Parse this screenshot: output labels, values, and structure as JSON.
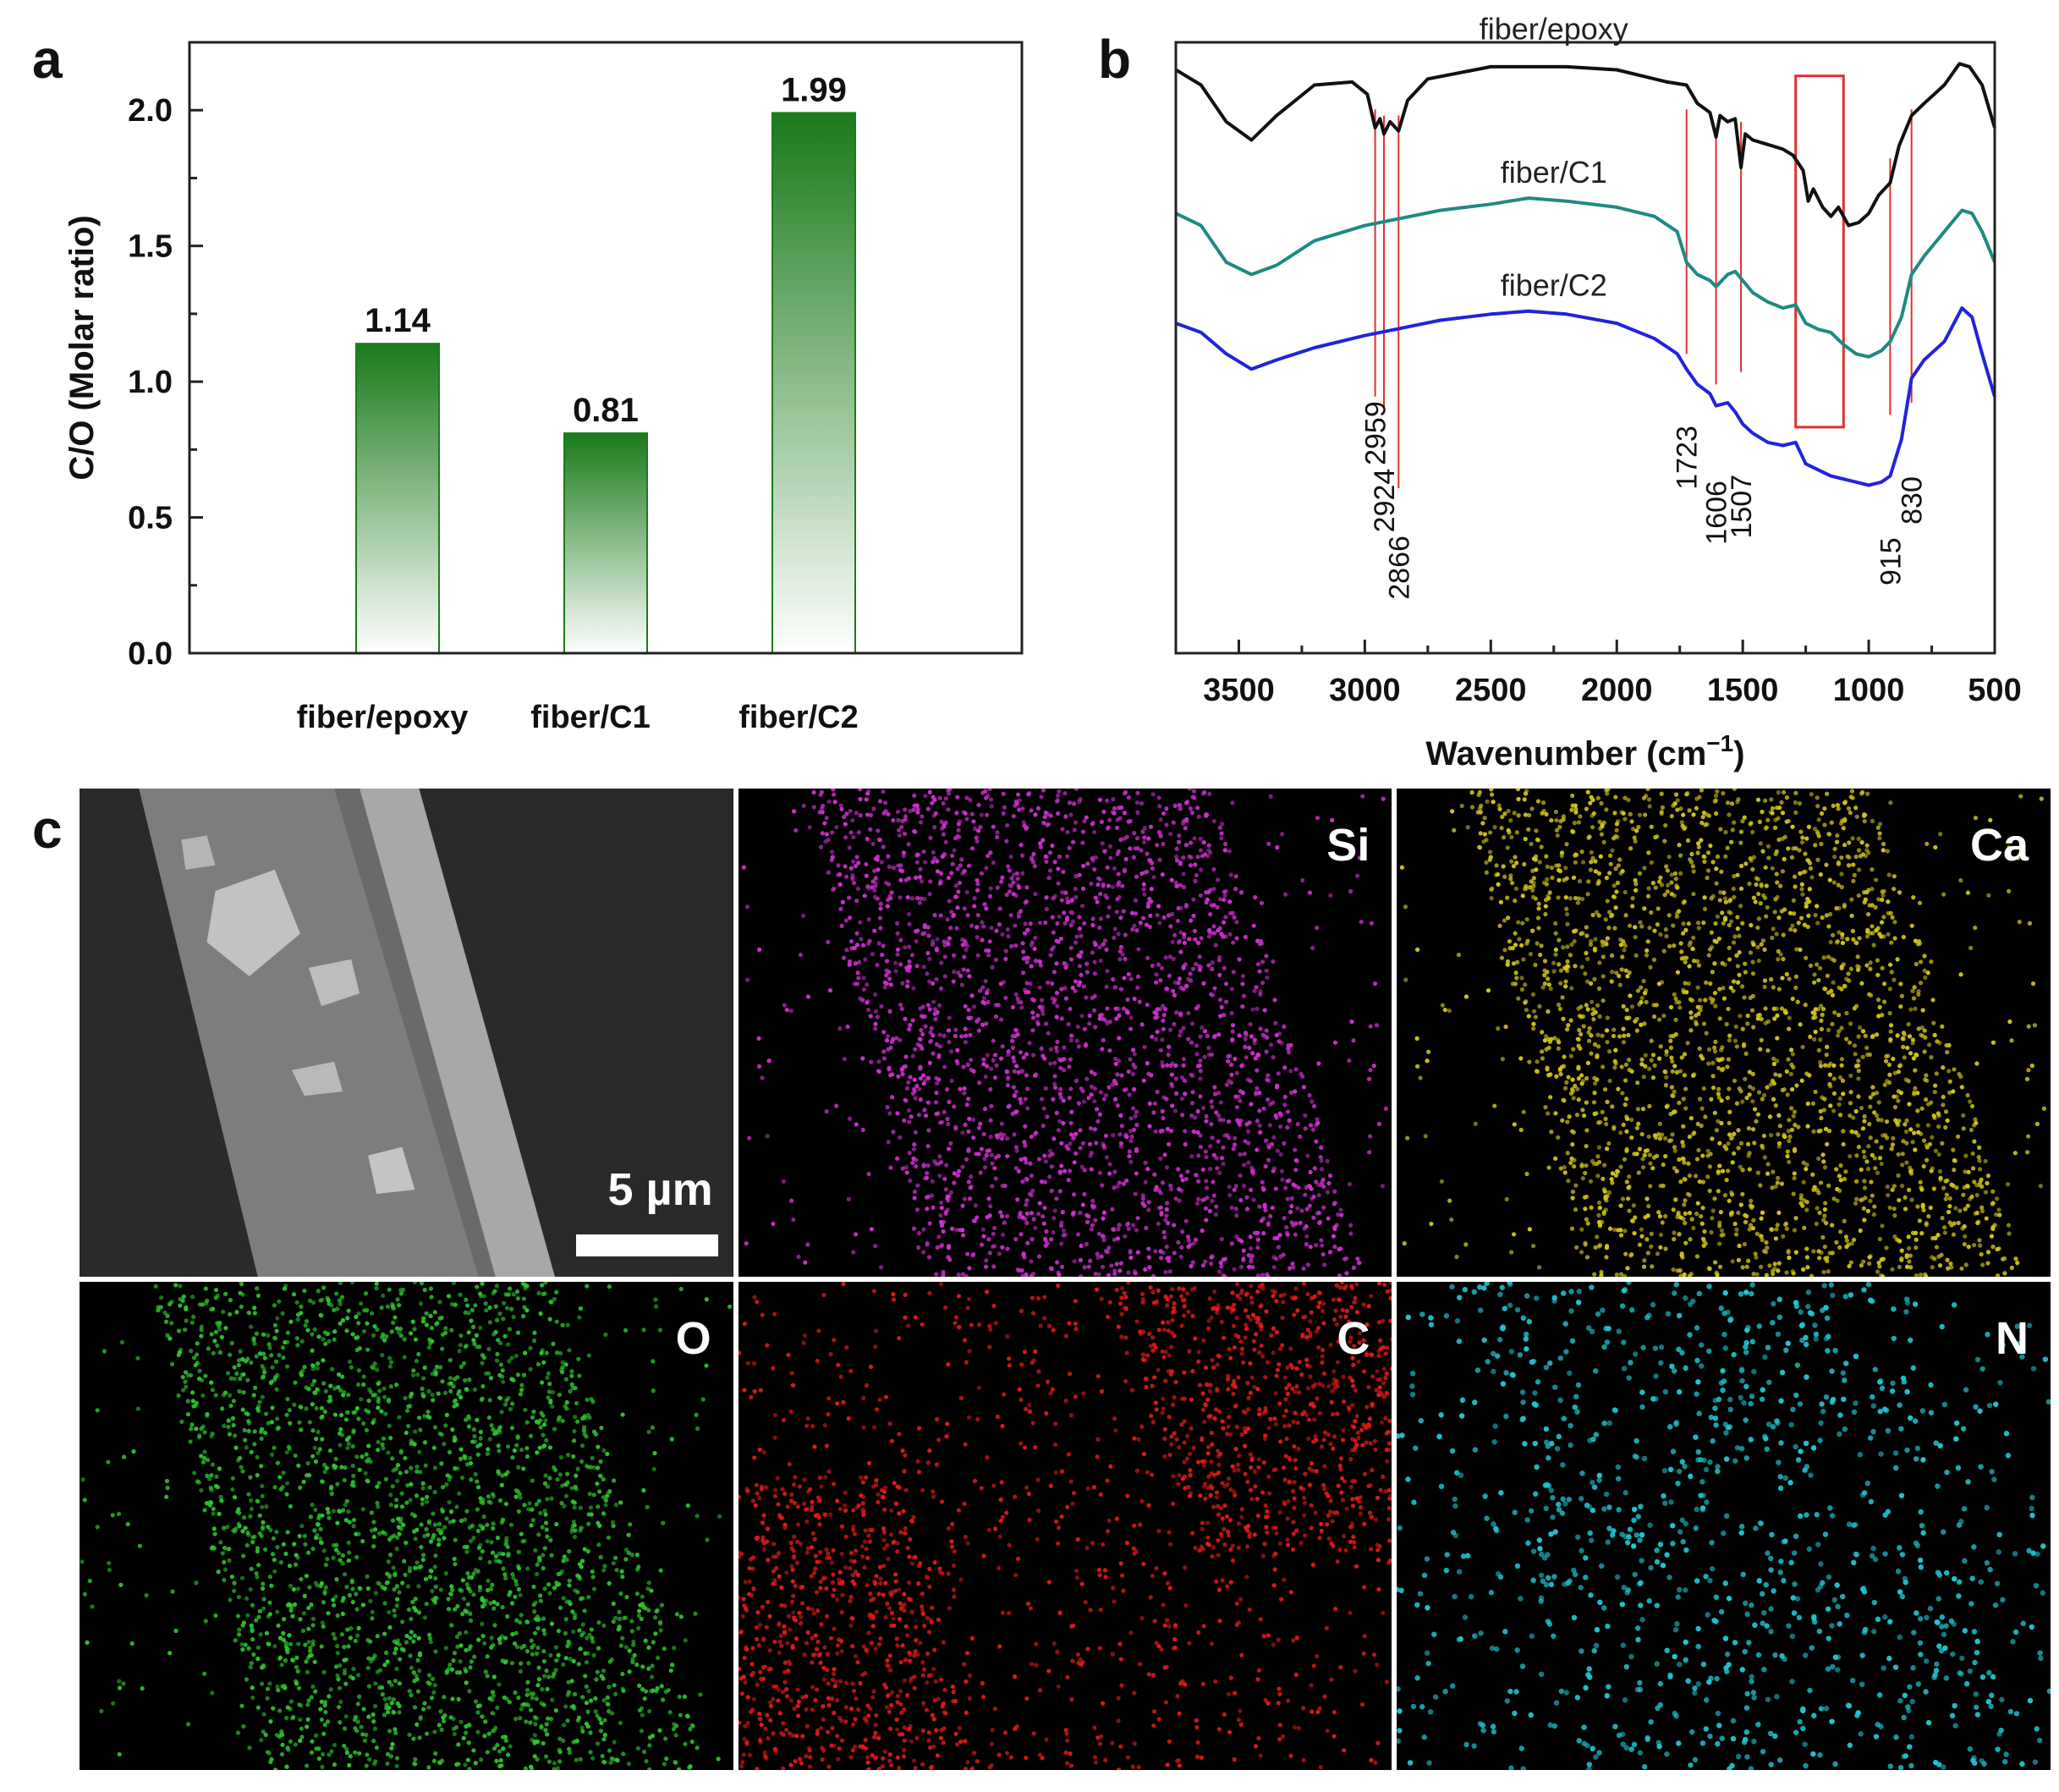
{
  "panels": {
    "a": "a",
    "b": "b",
    "c": "c"
  },
  "chart_data": [
    {
      "type": "bar",
      "panel": "a",
      "categories": [
        "fiber/epoxy",
        "fiber/C1",
        "fiber/C2"
      ],
      "values": [
        1.14,
        0.81,
        1.99
      ],
      "data_labels": [
        "1.14",
        "0.81",
        "1.99"
      ],
      "ylabel": "C/O (Molar ratio)",
      "xlabel": "",
      "ylim": [
        0,
        2.25
      ],
      "yticks": [
        0.0,
        0.5,
        1.0,
        1.5,
        2.0
      ],
      "ytick_labels": [
        "0.0",
        "0.5",
        "1.0",
        "1.5",
        "2.0"
      ],
      "bar_color_top": "#1a7a1a",
      "bar_color_bottom": "#ffffff",
      "grid": false
    },
    {
      "type": "line",
      "panel": "b",
      "xlabel": "Wavenumber (cm",
      "xlabel_sup": "−1",
      "xlabel_close": ")",
      "xlim": [
        3750,
        500
      ],
      "xticks": [
        3500,
        3000,
        2500,
        2000,
        1500,
        1000,
        500
      ],
      "xtick_labels": [
        "3500",
        "3000",
        "2500",
        "2000",
        "1500",
        "1000",
        "500"
      ],
      "ylabel": "",
      "grid": false,
      "series": [
        {
          "name": "fiber/epoxy",
          "color": "#111111",
          "points": [
            [
              3750,
              0.955
            ],
            [
              3650,
              0.93
            ],
            [
              3550,
              0.87
            ],
            [
              3450,
              0.84
            ],
            [
              3350,
              0.88
            ],
            [
              3200,
              0.93
            ],
            [
              3050,
              0.935
            ],
            [
              2990,
              0.915
            ],
            [
              2959,
              0.86
            ],
            [
              2940,
              0.875
            ],
            [
              2924,
              0.85
            ],
            [
              2900,
              0.87
            ],
            [
              2866,
              0.855
            ],
            [
              2830,
              0.905
            ],
            [
              2750,
              0.94
            ],
            [
              2500,
              0.96
            ],
            [
              2200,
              0.96
            ],
            [
              2000,
              0.955
            ],
            [
              1800,
              0.935
            ],
            [
              1723,
              0.93
            ],
            [
              1680,
              0.9
            ],
            [
              1630,
              0.885
            ],
            [
              1606,
              0.845
            ],
            [
              1590,
              0.88
            ],
            [
              1560,
              0.87
            ],
            [
              1530,
              0.875
            ],
            [
              1507,
              0.795
            ],
            [
              1490,
              0.85
            ],
            [
              1460,
              0.84
            ],
            [
              1420,
              0.835
            ],
            [
              1380,
              0.83
            ],
            [
              1340,
              0.825
            ],
            [
              1300,
              0.815
            ],
            [
              1260,
              0.79
            ],
            [
              1240,
              0.74
            ],
            [
              1220,
              0.76
            ],
            [
              1183,
              0.73
            ],
            [
              1150,
              0.715
            ],
            [
              1120,
              0.73
            ],
            [
              1080,
              0.7
            ],
            [
              1040,
              0.705
            ],
            [
              1000,
              0.72
            ],
            [
              960,
              0.75
            ],
            [
              915,
              0.77
            ],
            [
              880,
              0.83
            ],
            [
              830,
              0.88
            ],
            [
              780,
              0.9
            ],
            [
              700,
              0.93
            ],
            [
              640,
              0.965
            ],
            [
              600,
              0.96
            ],
            [
              550,
              0.93
            ],
            [
              500,
              0.86
            ]
          ]
        },
        {
          "name": "fiber/C1",
          "color": "#1e8a82",
          "points": [
            [
              3750,
              0.72
            ],
            [
              3650,
              0.7
            ],
            [
              3550,
              0.64
            ],
            [
              3450,
              0.62
            ],
            [
              3350,
              0.635
            ],
            [
              3200,
              0.675
            ],
            [
              3000,
              0.7
            ],
            [
              2700,
              0.725
            ],
            [
              2500,
              0.735
            ],
            [
              2350,
              0.745
            ],
            [
              2200,
              0.74
            ],
            [
              2000,
              0.73
            ],
            [
              1850,
              0.715
            ],
            [
              1760,
              0.69
            ],
            [
              1723,
              0.64
            ],
            [
              1680,
              0.62
            ],
            [
              1630,
              0.61
            ],
            [
              1606,
              0.6
            ],
            [
              1560,
              0.62
            ],
            [
              1530,
              0.625
            ],
            [
              1500,
              0.61
            ],
            [
              1460,
              0.59
            ],
            [
              1400,
              0.575
            ],
            [
              1340,
              0.565
            ],
            [
              1290,
              0.57
            ],
            [
              1250,
              0.54
            ],
            [
              1200,
              0.53
            ],
            [
              1150,
              0.525
            ],
            [
              1100,
              0.505
            ],
            [
              1050,
              0.49
            ],
            [
              1000,
              0.485
            ],
            [
              950,
              0.495
            ],
            [
              915,
              0.51
            ],
            [
              870,
              0.55
            ],
            [
              830,
              0.62
            ],
            [
              780,
              0.65
            ],
            [
              700,
              0.69
            ],
            [
              630,
              0.725
            ],
            [
              590,
              0.72
            ],
            [
              550,
              0.69
            ],
            [
              500,
              0.64
            ]
          ]
        },
        {
          "name": "fiber/C2",
          "color": "#2222dd",
          "points": [
            [
              3750,
              0.54
            ],
            [
              3650,
              0.525
            ],
            [
              3550,
              0.49
            ],
            [
              3450,
              0.465
            ],
            [
              3350,
              0.48
            ],
            [
              3200,
              0.5
            ],
            [
              3000,
              0.52
            ],
            [
              2700,
              0.545
            ],
            [
              2500,
              0.555
            ],
            [
              2350,
              0.56
            ],
            [
              2200,
              0.555
            ],
            [
              2000,
              0.54
            ],
            [
              1850,
              0.515
            ],
            [
              1760,
              0.49
            ],
            [
              1723,
              0.465
            ],
            [
              1680,
              0.44
            ],
            [
              1630,
              0.425
            ],
            [
              1606,
              0.405
            ],
            [
              1560,
              0.41
            ],
            [
              1530,
              0.395
            ],
            [
              1500,
              0.375
            ],
            [
              1460,
              0.36
            ],
            [
              1400,
              0.345
            ],
            [
              1340,
              0.34
            ],
            [
              1290,
              0.345
            ],
            [
              1250,
              0.31
            ],
            [
              1200,
              0.3
            ],
            [
              1150,
              0.29
            ],
            [
              1100,
              0.285
            ],
            [
              1050,
              0.28
            ],
            [
              1000,
              0.275
            ],
            [
              950,
              0.28
            ],
            [
              915,
              0.29
            ],
            [
              870,
              0.35
            ],
            [
              830,
              0.45
            ],
            [
              780,
              0.48
            ],
            [
              700,
              0.51
            ],
            [
              630,
              0.565
            ],
            [
              590,
              0.55
            ],
            [
              550,
              0.49
            ],
            [
              500,
              0.42
            ]
          ]
        }
      ],
      "annotations": {
        "marker_lines": [
          2959,
          2924,
          2866,
          1723,
          1606,
          1507,
          915,
          830
        ],
        "marker_labels": [
          "2959",
          "2924",
          "2866",
          "1723",
          "1606",
          "1507",
          "915",
          "830"
        ],
        "marker_color": "#e03030",
        "highlight_box_xrange": [
          1290,
          1100
        ]
      }
    }
  ],
  "edx_maps": {
    "tiles": [
      {
        "label": "",
        "color": "#9a9a9a",
        "kind": "sem",
        "scale_label": "5 µm"
      },
      {
        "label": "Si",
        "color": "#d030d0",
        "kind": "map"
      },
      {
        "label": "Ca",
        "color": "#d2c61a",
        "kind": "map"
      },
      {
        "label": "O",
        "color": "#2ec42e",
        "kind": "map"
      },
      {
        "label": "C",
        "color": "#e01a1a",
        "kind": "map"
      },
      {
        "label": "N",
        "color": "#1ec8d2",
        "kind": "map"
      }
    ]
  }
}
